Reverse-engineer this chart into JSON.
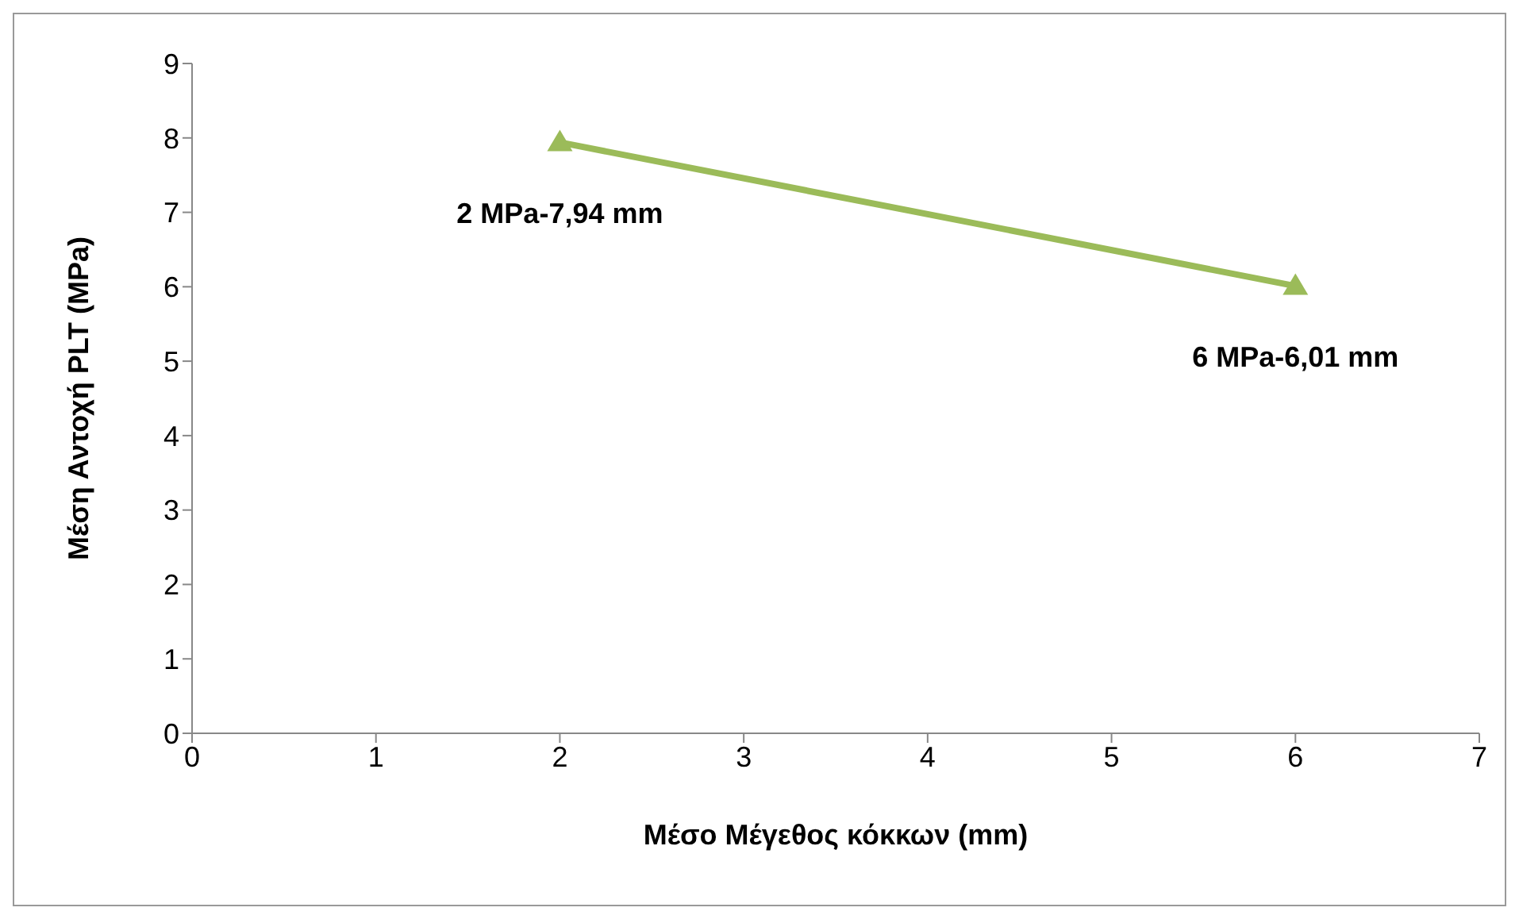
{
  "chart_data": {
    "type": "line",
    "xlabel": "Μέσο Μέγεθος κόκκων (mm)",
    "ylabel": "Μέση Αντοχή PLT (MPa)",
    "x": [
      2,
      6
    ],
    "series": [
      {
        "color": "#9bbb59",
        "values": [
          7.94,
          6.01
        ]
      }
    ],
    "xlim": [
      0,
      7
    ],
    "xticks": [
      0,
      1,
      2,
      3,
      4,
      5,
      6,
      7
    ],
    "ylim": [
      0,
      9
    ],
    "yticks": [
      0,
      1,
      2,
      3,
      4,
      5,
      6,
      7,
      8,
      9
    ],
    "grid": false,
    "legend": false,
    "marker": "triangle",
    "line_style": "solid",
    "annotations": [
      {
        "text": "2 MPa-7,94 mm",
        "x": 2,
        "y": 7.94
      },
      {
        "text": "6 MPa-6,01 mm",
        "x": 6,
        "y": 6.01
      }
    ]
  }
}
